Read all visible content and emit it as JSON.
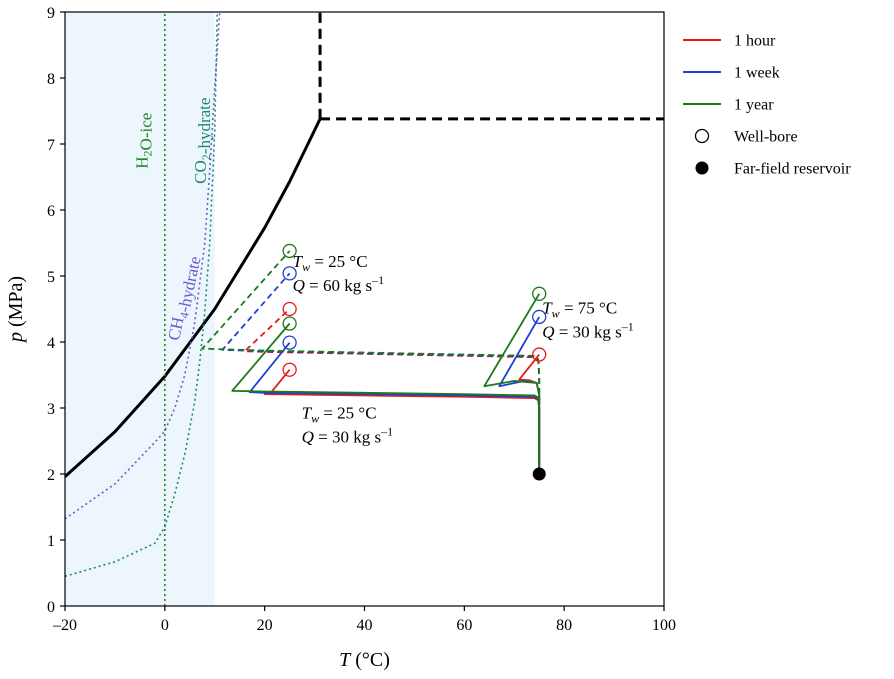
{
  "chart_data": {
    "type": "line",
    "xlabel": {
      "italic": "T",
      "rest": " (°C)"
    },
    "ylabel": {
      "italic": "p",
      "rest": " (MPa)"
    },
    "xlim": [
      -20,
      100
    ],
    "ylim": [
      0,
      9
    ],
    "xticks": [
      {
        "v": -20,
        "label": "–20"
      },
      {
        "v": 0,
        "label": "0"
      },
      {
        "v": 20,
        "label": "20"
      },
      {
        "v": 40,
        "label": "40"
      },
      {
        "v": 60,
        "label": "60"
      },
      {
        "v": 80,
        "label": "80"
      },
      {
        "v": 100,
        "label": "100"
      }
    ],
    "yticks": [
      {
        "v": 0,
        "label": "0"
      },
      {
        "v": 1,
        "label": "1"
      },
      {
        "v": 2,
        "label": "2"
      },
      {
        "v": 3,
        "label": "3"
      },
      {
        "v": 4,
        "label": "4"
      },
      {
        "v": 5,
        "label": "5"
      },
      {
        "v": 6,
        "label": "6"
      },
      {
        "v": 7,
        "label": "7"
      },
      {
        "v": 8,
        "label": "8"
      },
      {
        "v": 9,
        "label": "9"
      }
    ],
    "grid": false,
    "legend_position": "outside-top-right",
    "shaded_region": {
      "x": [
        -20,
        10
      ],
      "color": "#eef6fd"
    },
    "boundaries": [
      {
        "id": "co2-saturation",
        "style": "solid",
        "color": "#000000",
        "width": 3,
        "points": [
          [
            -20,
            1.96
          ],
          [
            -10,
            2.64
          ],
          [
            0,
            3.48
          ],
          [
            10,
            4.5
          ],
          [
            20,
            5.73
          ],
          [
            25,
            6.43
          ],
          [
            31.1,
            7.38
          ]
        ]
      },
      {
        "id": "critical-temp",
        "style": "dashed",
        "color": "#000000",
        "width": 3,
        "points": [
          [
            31.1,
            7.38
          ],
          [
            31.1,
            9
          ]
        ]
      },
      {
        "id": "critical-pressure",
        "style": "dashed",
        "color": "#000000",
        "width": 3,
        "points": [
          [
            31.1,
            7.38
          ],
          [
            100,
            7.38
          ]
        ]
      },
      {
        "id": "h2o-ice",
        "style": "dotted",
        "color": "#1a8a1a",
        "width": 1.6,
        "points": [
          [
            0,
            0
          ],
          [
            0,
            9
          ]
        ]
      },
      {
        "id": "co2-hydrate",
        "style": "dotted",
        "color": "#1a8a6a",
        "width": 1.6,
        "points": [
          [
            -20,
            0.45
          ],
          [
            -10,
            0.67
          ],
          [
            -2,
            0.95
          ],
          [
            0,
            1.2
          ],
          [
            2,
            1.7
          ],
          [
            4,
            2.3
          ],
          [
            6,
            3.1
          ],
          [
            7,
            3.7
          ],
          [
            8,
            4.45
          ],
          [
            9,
            5.5
          ],
          [
            10,
            7.2
          ],
          [
            10.5,
            9
          ]
        ]
      },
      {
        "id": "ch4-hydrate",
        "style": "dotted",
        "color": "#6a5acd",
        "width": 1.6,
        "points": [
          [
            -20,
            1.32
          ],
          [
            -10,
            1.85
          ],
          [
            -2,
            2.48
          ],
          [
            0,
            2.65
          ],
          [
            2,
            3.0
          ],
          [
            4,
            3.5
          ],
          [
            6,
            4.3
          ],
          [
            8,
            5.5
          ],
          [
            9,
            6.6
          ],
          [
            10,
            7.85
          ],
          [
            11,
            9
          ]
        ]
      }
    ],
    "phase_labels": [
      {
        "id": "h2o-ice-label",
        "text": "H<sub>2</sub>O-ice",
        "x": -3.5,
        "y": 7.05,
        "rotate": -90,
        "color": "#1a8a1a"
      },
      {
        "id": "co2-hydrate-label",
        "text": "CO<sub>2</sub>-hydrate",
        "x": 8.2,
        "y": 7.05,
        "rotate": -90,
        "color": "#1a8a6a"
      },
      {
        "id": "ch4-hydrate-label",
        "text": "CH<sub>4</sub>-hydrate",
        "x": 4.6,
        "y": 4.65,
        "rotate": -78,
        "color": "#6a5acd"
      }
    ],
    "series": [
      {
        "name": "1 hour",
        "color": "#e41a1c",
        "style": "solid",
        "group": "Tw25-Q30",
        "points": [
          [
            75,
            2
          ],
          [
            75,
            3.0
          ],
          [
            74.8,
            3.12
          ],
          [
            74,
            3.15
          ],
          [
            60,
            3.17
          ],
          [
            40,
            3.19
          ],
          [
            20,
            3.21
          ],
          [
            21,
            3.21
          ],
          [
            25,
            3.58
          ]
        ]
      },
      {
        "name": "1 week",
        "color": "#1f3fd6",
        "style": "solid",
        "group": "Tw25-Q30",
        "points": [
          [
            75,
            2
          ],
          [
            75,
            3.0
          ],
          [
            74.8,
            3.14
          ],
          [
            74,
            3.17
          ],
          [
            60,
            3.19
          ],
          [
            40,
            3.21
          ],
          [
            20,
            3.23
          ],
          [
            17,
            3.24
          ],
          [
            25,
            3.99
          ]
        ]
      },
      {
        "name": "1 year",
        "color": "#1a7a1a",
        "style": "solid",
        "group": "Tw25-Q30",
        "points": [
          [
            75,
            2
          ],
          [
            75,
            3.0
          ],
          [
            74.8,
            3.16
          ],
          [
            74,
            3.19
          ],
          [
            60,
            3.21
          ],
          [
            40,
            3.23
          ],
          [
            20,
            3.25
          ],
          [
            13.5,
            3.26
          ],
          [
            25,
            4.28
          ]
        ]
      },
      {
        "name": "1 hour",
        "color": "#e41a1c",
        "style": "dashed",
        "group": "Tw25-Q60",
        "points": [
          [
            75,
            2
          ],
          [
            75,
            3.5
          ],
          [
            74.8,
            3.72
          ],
          [
            74,
            3.77
          ],
          [
            60,
            3.79
          ],
          [
            40,
            3.82
          ],
          [
            20,
            3.85
          ],
          [
            16,
            3.86
          ],
          [
            25,
            4.5
          ]
        ]
      },
      {
        "name": "1 week",
        "color": "#1f3fd6",
        "style": "dashed",
        "group": "Tw25-Q60",
        "points": [
          [
            75,
            2
          ],
          [
            75,
            3.5
          ],
          [
            74.8,
            3.73
          ],
          [
            74,
            3.78
          ],
          [
            60,
            3.8
          ],
          [
            40,
            3.83
          ],
          [
            20,
            3.86
          ],
          [
            11.5,
            3.88
          ],
          [
            25,
            5.04
          ]
        ]
      },
      {
        "name": "1 year",
        "color": "#1a7a1a",
        "style": "dashed",
        "group": "Tw25-Q60",
        "points": [
          [
            75,
            2
          ],
          [
            75,
            3.5
          ],
          [
            74.8,
            3.74
          ],
          [
            74,
            3.79
          ],
          [
            60,
            3.81
          ],
          [
            40,
            3.84
          ],
          [
            20,
            3.87
          ],
          [
            7.5,
            3.9
          ],
          [
            25,
            5.38
          ]
        ]
      },
      {
        "name": "1 hour",
        "color": "#e41a1c",
        "style": "solid",
        "group": "Tw75-Q30",
        "points": [
          [
            75,
            2
          ],
          [
            75,
            3.2
          ],
          [
            74.5,
            3.38
          ],
          [
            73,
            3.42
          ],
          [
            71,
            3.43
          ],
          [
            75,
            3.81
          ]
        ]
      },
      {
        "name": "1 week",
        "color": "#1f3fd6",
        "style": "solid",
        "group": "Tw75-Q30",
        "points": [
          [
            75,
            2
          ],
          [
            75,
            3.2
          ],
          [
            74.5,
            3.38
          ],
          [
            72,
            3.41
          ],
          [
            67,
            3.33
          ],
          [
            75,
            4.38
          ]
        ]
      },
      {
        "name": "1 year",
        "color": "#1a7a1a",
        "style": "solid",
        "group": "Tw75-Q30",
        "points": [
          [
            75,
            2
          ],
          [
            75,
            3.2
          ],
          [
            74.5,
            3.38
          ],
          [
            70,
            3.41
          ],
          [
            64,
            3.33
          ],
          [
            75,
            4.73
          ]
        ]
      }
    ],
    "wellbore_points": [
      {
        "x": 25,
        "y": 3.58,
        "color": "#e41a1c"
      },
      {
        "x": 25,
        "y": 3.99,
        "color": "#1f3fd6"
      },
      {
        "x": 25,
        "y": 4.28,
        "color": "#1a7a1a"
      },
      {
        "x": 25,
        "y": 4.5,
        "color": "#e41a1c"
      },
      {
        "x": 25,
        "y": 5.04,
        "color": "#1f3fd6"
      },
      {
        "x": 25,
        "y": 5.38,
        "color": "#1a7a1a"
      },
      {
        "x": 75,
        "y": 3.81,
        "color": "#e41a1c"
      },
      {
        "x": 75,
        "y": 4.38,
        "color": "#1f3fd6"
      },
      {
        "x": 75,
        "y": 4.73,
        "color": "#1a7a1a"
      }
    ],
    "farfield_point": {
      "x": 75,
      "y": 2,
      "color": "#000000"
    },
    "annotations": [
      {
        "id": "annot-tw25-q60",
        "x": 25.6,
        "y": 5.14,
        "Tw": "25 °C",
        "Q": "60 kg s",
        "exp": "–1"
      },
      {
        "id": "annot-tw75-q30",
        "x": 75.6,
        "y": 4.43,
        "Tw": "75 °C",
        "Q": "30 kg s",
        "exp": "–1"
      },
      {
        "id": "annot-tw25-q30",
        "x": 27.4,
        "y": 2.84,
        "Tw": "25 °C",
        "Q": "30 kg s",
        "exp": "–1"
      }
    ],
    "legend": [
      {
        "label": "1 hour",
        "kind": "line",
        "color": "#e41a1c"
      },
      {
        "label": "1 week",
        "kind": "line",
        "color": "#1f3fd6"
      },
      {
        "label": "1 year",
        "kind": "line",
        "color": "#1a7a1a"
      },
      {
        "label": "Well-bore",
        "kind": "open-circle",
        "color": "#000000"
      },
      {
        "label": "Far-field reservoir",
        "kind": "filled-circle",
        "color": "#000000"
      }
    ]
  }
}
